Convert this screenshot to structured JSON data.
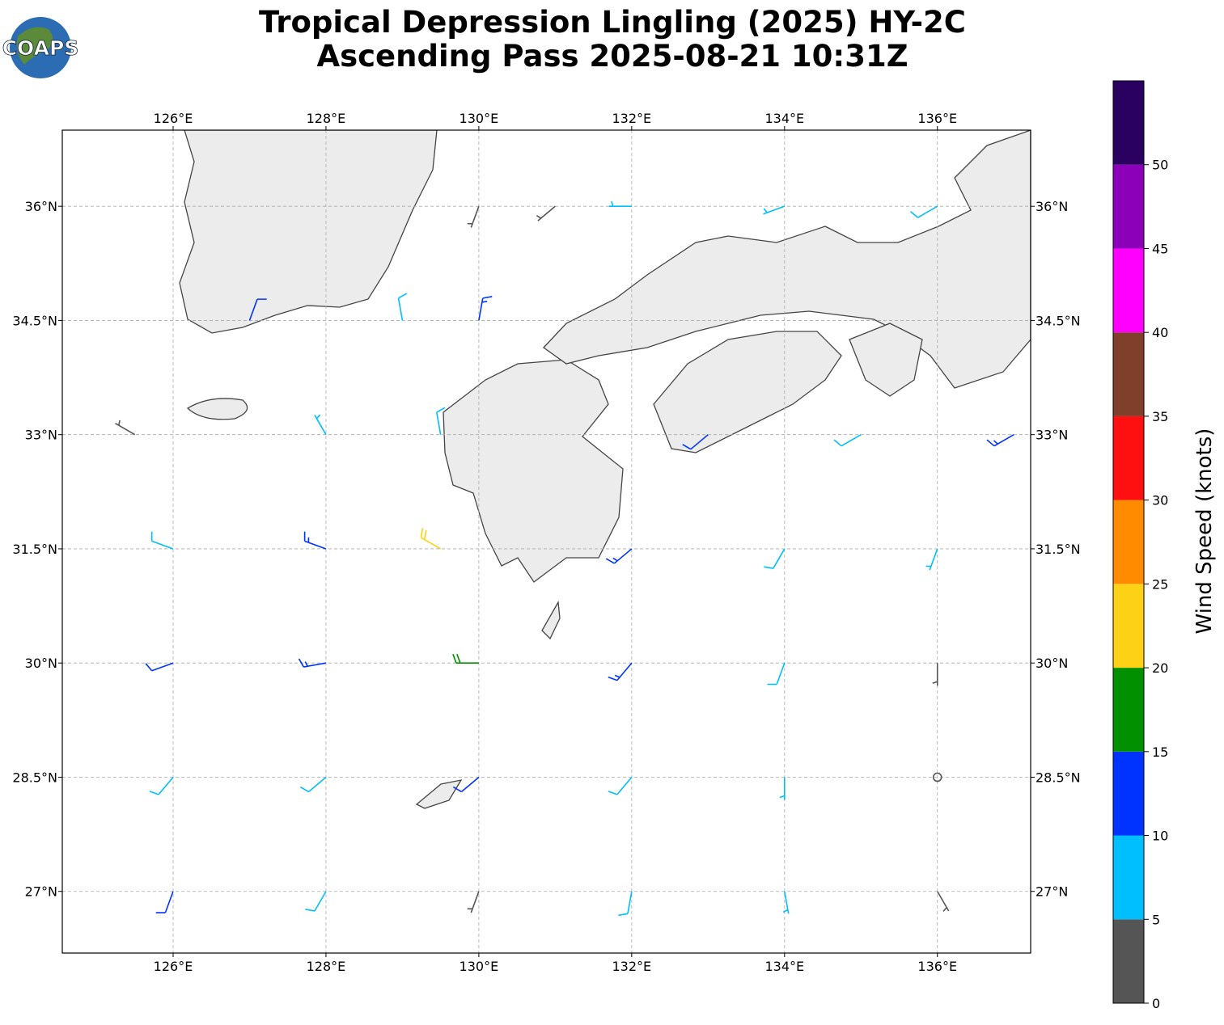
{
  "chart_data": {
    "type": "barbs",
    "title": "Tropical Depression Lingling (2025) HY-2C",
    "subtitle": "Ascending Pass 2025-08-21 10:31Z",
    "logo": "COAPS",
    "xlim": [
      124.55,
      137.22
    ],
    "ylim": [
      26.19,
      37.0
    ],
    "xticks": [
      {
        "value": 126,
        "label": "126°E"
      },
      {
        "value": 128,
        "label": "128°E"
      },
      {
        "value": 130,
        "label": "130°E"
      },
      {
        "value": 132,
        "label": "132°E"
      },
      {
        "value": 134,
        "label": "134°E"
      },
      {
        "value": 136,
        "label": "136°E"
      }
    ],
    "yticks": [
      {
        "value": 27,
        "label": "27°N"
      },
      {
        "value": 28.5,
        "label": "28.5°N"
      },
      {
        "value": 30,
        "label": "30°N"
      },
      {
        "value": 31.5,
        "label": "31.5°N"
      },
      {
        "value": 33,
        "label": "33°N"
      },
      {
        "value": 34.5,
        "label": "34.5°N"
      },
      {
        "value": 36,
        "label": "36°N"
      }
    ],
    "grid": true,
    "barbs": {
      "lon": [
        126,
        128,
        130,
        132,
        134,
        136,
        126,
        128,
        130,
        132,
        134,
        136,
        126,
        128,
        130,
        132,
        134,
        136,
        126,
        128,
        129.5,
        132,
        134,
        136,
        125.5,
        128,
        129.5,
        133,
        135,
        137,
        127,
        129,
        130,
        130,
        131,
        132,
        134,
        136
      ],
      "lat": [
        27,
        27,
        27,
        27,
        27,
        27,
        28.5,
        28.5,
        28.5,
        28.5,
        28.5,
        28.5,
        30,
        30,
        30,
        30,
        30,
        30,
        31.5,
        31.5,
        31.5,
        31.5,
        31.5,
        31.5,
        33,
        33,
        33,
        33,
        33,
        33,
        34.5,
        34.5,
        34.5,
        36,
        36,
        36,
        36,
        36
      ],
      "speed": [
        12,
        8,
        4,
        8,
        7,
        3,
        8,
        8,
        12,
        9,
        7,
        2,
        12,
        13,
        18,
        14,
        9,
        3,
        8,
        14,
        22,
        13,
        9,
        7,
        3,
        6,
        9,
        10,
        9,
        14,
        11,
        9,
        13,
        4,
        4,
        7,
        5,
        8
      ],
      "direction": [
        200,
        210,
        200,
        190,
        170,
        150,
        220,
        230,
        230,
        220,
        180,
        0,
        250,
        260,
        270,
        220,
        200,
        180,
        290,
        290,
        300,
        230,
        210,
        200,
        300,
        330,
        350,
        230,
        240,
        240,
        20,
        350,
        10,
        200,
        230,
        270,
        250,
        240
      ]
    },
    "colorbar": {
      "label": "Wind Speed (knots)",
      "bounds": [
        0,
        5,
        10,
        15,
        20,
        25,
        30,
        35,
        40,
        45,
        50,
        55
      ],
      "colors": [
        "#555555",
        "#00bfff",
        "#0033ff",
        "#009000",
        "#fcd116",
        "#ff8c00",
        "#ff1010",
        "#7f3f2a",
        "#ff00ff",
        "#8b00b8",
        "#2a0060"
      ],
      "ticks": [
        0,
        5,
        10,
        15,
        20,
        25,
        30,
        35,
        40,
        45,
        50
      ]
    }
  }
}
